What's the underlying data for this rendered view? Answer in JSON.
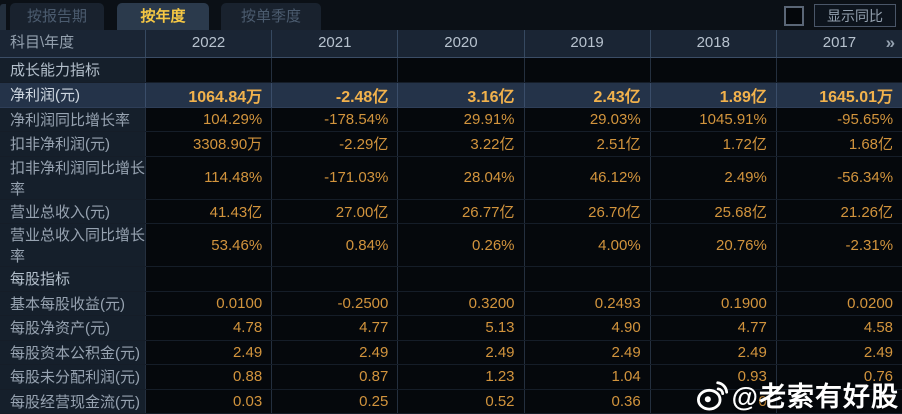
{
  "tabs": [
    {
      "label": "按报告期",
      "active": false
    },
    {
      "label": "按年度",
      "active": true
    },
    {
      "label": "按单季度",
      "active": false
    }
  ],
  "controls": {
    "show_yoy_label": "显示同比",
    "checkbox_checked": false
  },
  "table": {
    "corner_label": "科目\\年度",
    "years": [
      "2022",
      "2021",
      "2020",
      "2019",
      "2018",
      "2017"
    ],
    "more_years_icon": "»",
    "rows": [
      {
        "type": "section",
        "label": "成长能力指标",
        "values": [
          "",
          "",
          "",
          "",
          "",
          ""
        ]
      },
      {
        "type": "data",
        "highlight": true,
        "label": "净利润(元)",
        "values": [
          "1064.84万",
          "-2.48亿",
          "3.16亿",
          "2.43亿",
          "1.89亿",
          "1645.01万"
        ]
      },
      {
        "type": "data",
        "label": "净利润同比增长率",
        "values": [
          "104.29%",
          "-178.54%",
          "29.91%",
          "29.03%",
          "1045.91%",
          "-95.65%"
        ]
      },
      {
        "type": "data",
        "label": "扣非净利润(元)",
        "values": [
          "3308.90万",
          "-2.29亿",
          "3.22亿",
          "2.51亿",
          "1.72亿",
          "1.68亿"
        ]
      },
      {
        "type": "data",
        "label": "扣非净利润同比增长率",
        "values": [
          "114.48%",
          "-171.03%",
          "28.04%",
          "46.12%",
          "2.49%",
          "-56.34%"
        ]
      },
      {
        "type": "data",
        "label": "营业总收入(元)",
        "values": [
          "41.43亿",
          "27.00亿",
          "26.77亿",
          "26.70亿",
          "25.68亿",
          "21.26亿"
        ]
      },
      {
        "type": "data",
        "label": "营业总收入同比增长率",
        "values": [
          "53.46%",
          "0.84%",
          "0.26%",
          "4.00%",
          "20.76%",
          "-2.31%"
        ]
      },
      {
        "type": "section",
        "label": "每股指标",
        "values": [
          "",
          "",
          "",
          "",
          "",
          ""
        ]
      },
      {
        "type": "data",
        "label": "基本每股收益(元)",
        "values": [
          "0.0100",
          "-0.2500",
          "0.3200",
          "0.2493",
          "0.1900",
          "0.0200"
        ]
      },
      {
        "type": "data",
        "label": "每股净资产(元)",
        "values": [
          "4.78",
          "4.77",
          "5.13",
          "4.90",
          "4.77",
          "4.58"
        ]
      },
      {
        "type": "data",
        "label": "每股资本公积金(元)",
        "values": [
          "2.49",
          "2.49",
          "2.49",
          "2.49",
          "2.49",
          "2.49"
        ]
      },
      {
        "type": "data",
        "label": "每股未分配利润(元)",
        "values": [
          "0.88",
          "0.87",
          "1.23",
          "1.04",
          "0.93",
          "0.76"
        ]
      },
      {
        "type": "data",
        "label": "每股经营现金流(元)",
        "values": [
          "0.03",
          "0.25",
          "0.52",
          "0.36",
          "0",
          "9"
        ]
      }
    ]
  },
  "watermark": {
    "icon": "weibo-icon",
    "text": "@老索有好股"
  },
  "colors": {
    "accent_gold": "#f6c844",
    "value_orange": "#d2943d",
    "highlight_value": "#f2b24c",
    "highlight_row_bg": "#243349",
    "watermark": "#ffffff"
  }
}
